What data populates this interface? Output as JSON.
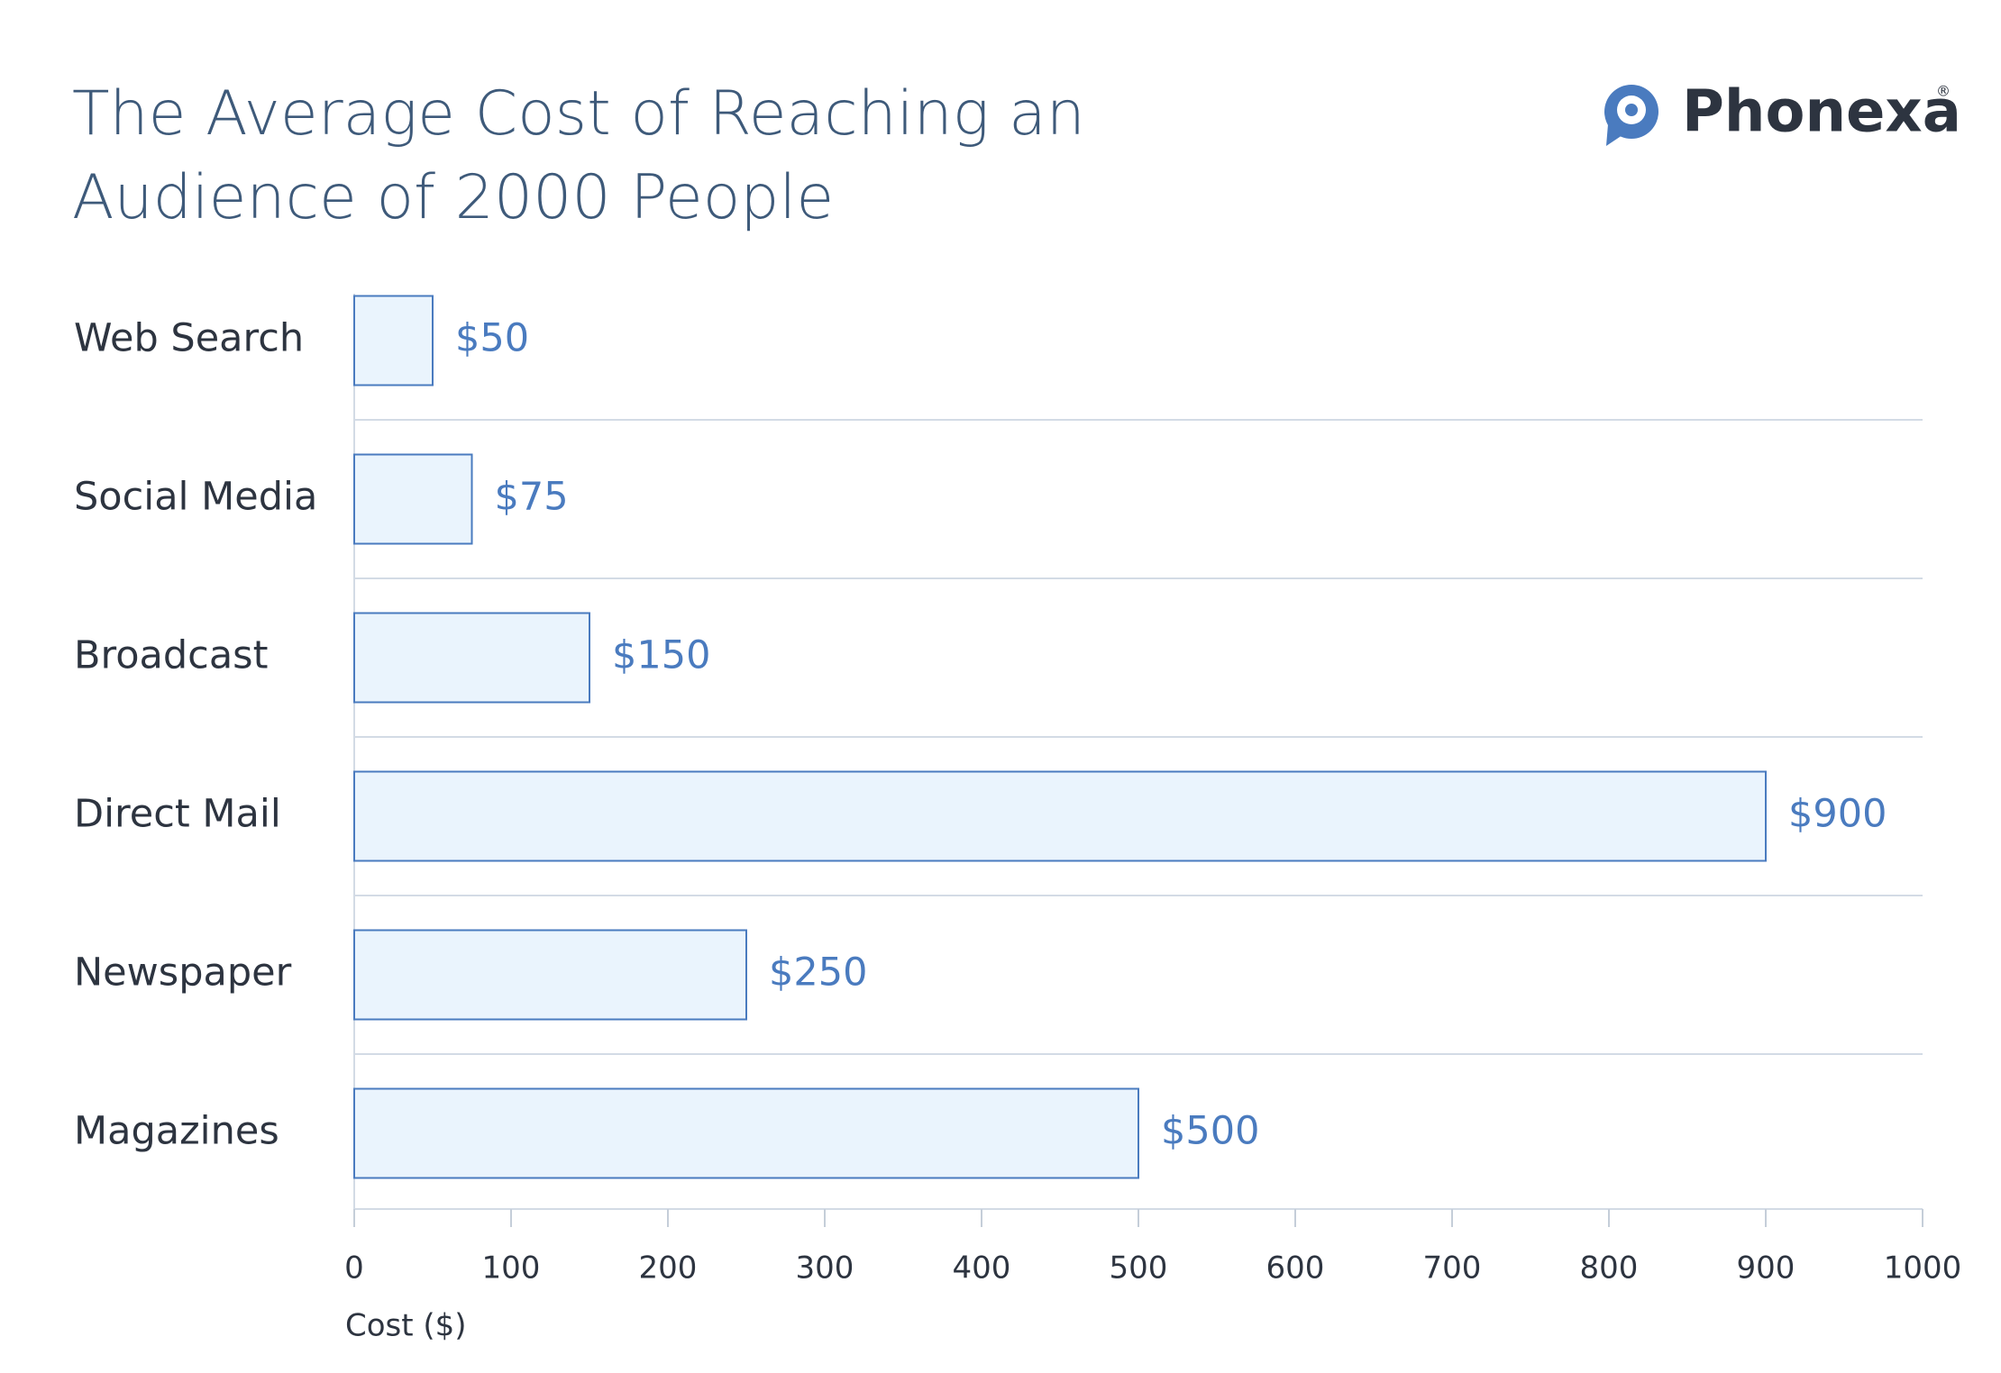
{
  "chart_data": {
    "type": "bar",
    "orientation": "horizontal",
    "title": "The Average Cost of Reaching an Audience of 2000 People",
    "logo": {
      "name": "Phonexa",
      "mark": "®"
    },
    "categories": [
      "Web Search",
      "Social Media",
      "Broadcast",
      "Direct Mail",
      "Newspaper",
      "Magazines"
    ],
    "values": [
      50,
      75,
      150,
      900,
      250,
      500
    ],
    "value_labels": [
      "$50",
      "$75",
      "$150",
      "$900",
      "$250",
      "$500"
    ],
    "color": "#4a7bbf",
    "fill": "#eaf4fd",
    "xlim": [
      0,
      1000
    ],
    "xticks": [
      0,
      100,
      200,
      300,
      400,
      500,
      600,
      700,
      800,
      900,
      1000
    ],
    "xlabel": "Cost ($)"
  }
}
